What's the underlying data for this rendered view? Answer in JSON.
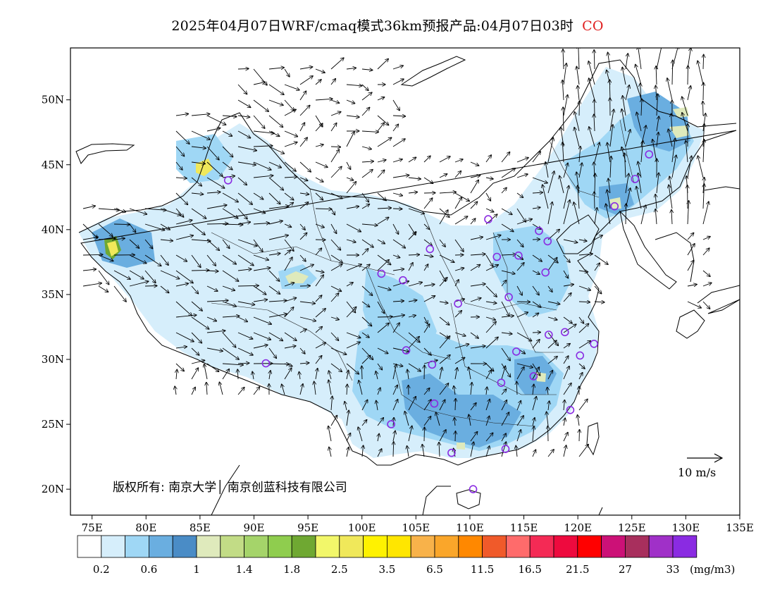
{
  "title": {
    "main": "2025年04月07日WRF/cmaq模式36km预报产品:04月07日03时",
    "species": "CO",
    "species_color": "#e02020"
  },
  "map": {
    "lon_range": [
      73,
      135
    ],
    "lat_range": [
      18,
      54
    ],
    "lat_ticks": [
      {
        "value": 50,
        "label": "50N"
      },
      {
        "value": 45,
        "label": "45N"
      },
      {
        "value": 40,
        "label": "40N"
      },
      {
        "value": 35,
        "label": "35N"
      },
      {
        "value": 30,
        "label": "30N"
      },
      {
        "value": 25,
        "label": "25N"
      },
      {
        "value": 20,
        "label": "20N"
      }
    ],
    "lon_ticks": [
      {
        "value": 75,
        "label": "75E"
      },
      {
        "value": 80,
        "label": "80E"
      },
      {
        "value": 85,
        "label": "85E"
      },
      {
        "value": 90,
        "label": "90E"
      },
      {
        "value": 95,
        "label": "95E"
      },
      {
        "value": 100,
        "label": "100E"
      },
      {
        "value": 105,
        "label": "105E"
      },
      {
        "value": 110,
        "label": "110E"
      },
      {
        "value": 115,
        "label": "115E"
      },
      {
        "value": 120,
        "label": "120E"
      },
      {
        "value": 125,
        "label": "125E"
      },
      {
        "value": 130,
        "label": "130E"
      },
      {
        "value": 135,
        "label": "135E"
      }
    ],
    "credit": "版权所有: 南京大学│ 南京创蓝科技有限公司",
    "wind_scale_label": "10 m/s",
    "cities": [
      [
        87.6,
        43.8
      ],
      [
        91.1,
        29.7
      ],
      [
        101.8,
        36.6
      ],
      [
        103.8,
        36.1
      ],
      [
        106.3,
        38.5
      ],
      [
        111.7,
        40.8
      ],
      [
        112.5,
        37.9
      ],
      [
        114.5,
        38.0
      ],
      [
        116.4,
        39.9
      ],
      [
        117.2,
        39.1
      ],
      [
        117.0,
        36.7
      ],
      [
        113.6,
        34.8
      ],
      [
        108.9,
        34.3
      ],
      [
        104.1,
        30.7
      ],
      [
        106.5,
        29.6
      ],
      [
        114.3,
        30.6
      ],
      [
        112.9,
        28.2
      ],
      [
        115.9,
        28.7
      ],
      [
        117.3,
        31.9
      ],
      [
        118.8,
        32.1
      ],
      [
        120.2,
        30.3
      ],
      [
        121.5,
        31.2
      ],
      [
        119.3,
        26.1
      ],
      [
        113.3,
        23.1
      ],
      [
        108.3,
        22.8
      ],
      [
        110.3,
        20.0
      ],
      [
        102.7,
        25.0
      ],
      [
        106.7,
        26.6
      ],
      [
        123.4,
        41.8
      ],
      [
        125.3,
        43.9
      ],
      [
        126.6,
        45.8
      ]
    ]
  },
  "legend": {
    "unit": "(mg/m3)",
    "colors": [
      "#ffffff",
      "#d6eefb",
      "#9fd7f5",
      "#6aaee0",
      "#4a8cc6",
      "#dfeabc",
      "#c2dc86",
      "#a5d46a",
      "#8fcd4e",
      "#6fa832",
      "#f2f76a",
      "#f0e85a",
      "#fff200",
      "#ffe600",
      "#f8b24a",
      "#faa62a",
      "#ff8800",
      "#f05a2a",
      "#ff6b6b",
      "#f42a55",
      "#ee0a3e",
      "#ff0000",
      "#cc1177",
      "#a82f5d",
      "#a030c8",
      "#8a2be2"
    ],
    "labels": [
      "0.2",
      "0.6",
      "1",
      "1.4",
      "1.8",
      "2.5",
      "3.5",
      "6.5",
      "11.5",
      "16.5",
      "21.5",
      "27",
      "33"
    ]
  }
}
